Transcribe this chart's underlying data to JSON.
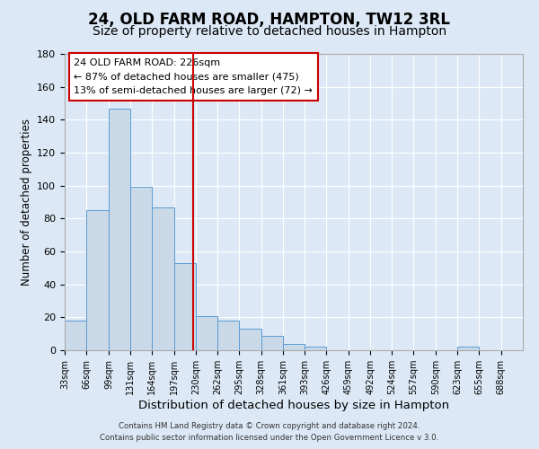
{
  "title": "24, OLD FARM ROAD, HAMPTON, TW12 3RL",
  "subtitle": "Size of property relative to detached houses in Hampton",
  "xlabel": "Distribution of detached houses by size in Hampton",
  "ylabel": "Number of detached properties",
  "bar_edges": [
    33,
    66,
    99,
    131,
    164,
    197,
    230,
    262,
    295,
    328,
    361,
    393,
    426,
    459,
    492,
    524,
    557,
    590,
    623,
    655,
    688
  ],
  "bar_heights": [
    18,
    85,
    147,
    99,
    87,
    53,
    21,
    18,
    13,
    9,
    4,
    2,
    0,
    0,
    0,
    0,
    0,
    0,
    2,
    0,
    0
  ],
  "bar_color": "#c9d9e8",
  "bar_edgecolor": "#5b9bd5",
  "property_line_x": 226,
  "property_line_color": "#cc0000",
  "annotation_title": "24 OLD FARM ROAD: 226sqm",
  "annotation_line1": "← 87% of detached houses are smaller (475)",
  "annotation_line2": "13% of semi-detached houses are larger (72) →",
  "annotation_box_edgecolor": "#cc0000",
  "ylim": [
    0,
    180
  ],
  "yticks": [
    0,
    20,
    40,
    60,
    80,
    100,
    120,
    140,
    160,
    180
  ],
  "bg_color": "#dce8f5",
  "plot_bg_color": "#dce8f5",
  "footer_line1": "Contains HM Land Registry data © Crown copyright and database right 2024.",
  "footer_line2": "Contains public sector information licensed under the Open Government Licence v 3.0.",
  "title_fontsize": 12,
  "subtitle_fontsize": 10,
  "xlabel_fontsize": 9.5,
  "ylabel_fontsize": 8.5,
  "grid_color": "#ffffff",
  "spine_color": "#aaaaaa"
}
